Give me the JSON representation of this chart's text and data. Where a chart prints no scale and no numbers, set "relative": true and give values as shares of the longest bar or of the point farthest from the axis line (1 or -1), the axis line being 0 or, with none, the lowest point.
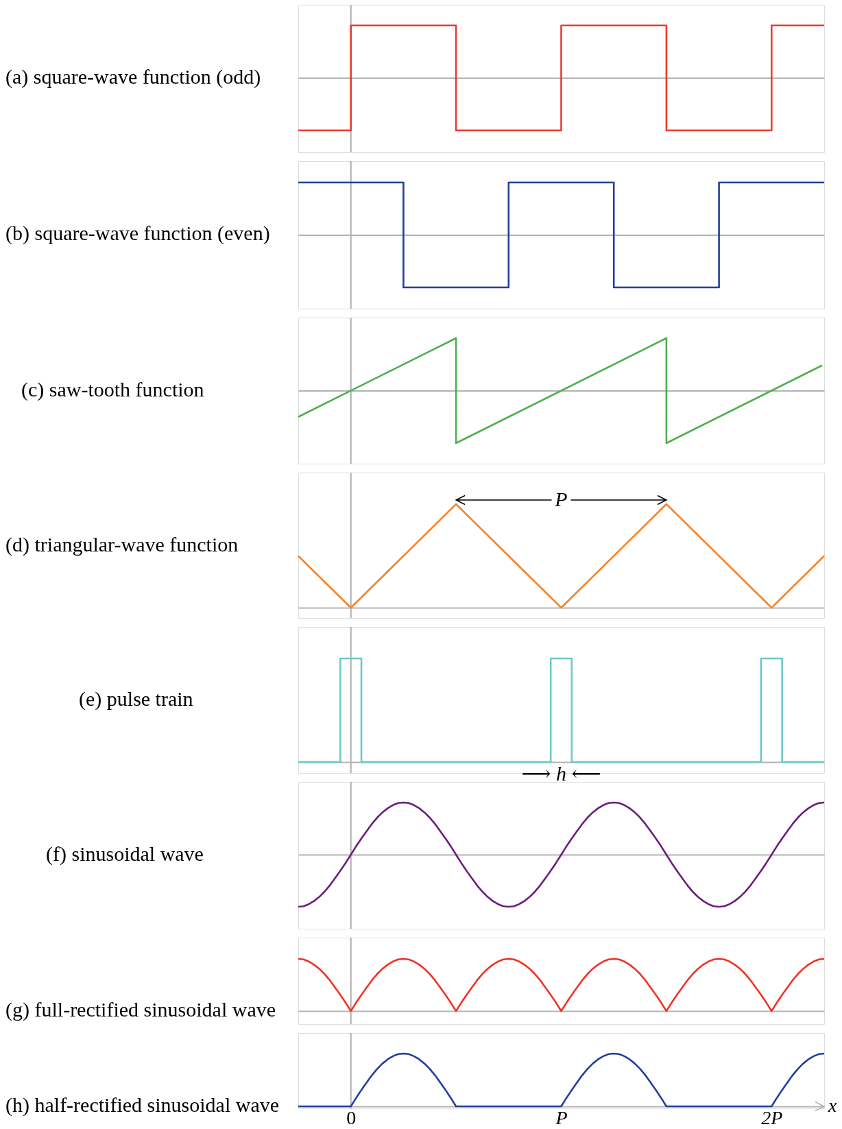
{
  "chart_data": [
    {
      "type": "step",
      "title": "(a) square-wave function (odd)",
      "relative": true,
      "xlim": [
        -0.25,
        2.25
      ],
      "tick_labels": false,
      "line_style": "solid",
      "color": "#ee3a2f",
      "x": [
        -0.25,
        0,
        0.5,
        1,
        1.5,
        2,
        2.25
      ],
      "values": [
        -1,
        1,
        -1,
        1,
        -1,
        1,
        1
      ],
      "ref_lines": [
        {
          "axis": "x",
          "value": 0,
          "color": "#b3b3b3"
        }
      ]
    },
    {
      "type": "step",
      "title": "(b) square-wave function (even)",
      "relative": true,
      "xlim": [
        -0.25,
        2.25
      ],
      "tick_labels": false,
      "line_style": "solid",
      "color": "#21409a",
      "x": [
        -0.25,
        0.25,
        0.75,
        1.25,
        1.75,
        2.25
      ],
      "values": [
        1,
        -1,
        1,
        -1,
        1,
        1
      ],
      "ref_lines": [
        {
          "axis": "x",
          "value": 0,
          "color": "#b3b3b3"
        }
      ]
    },
    {
      "type": "line",
      "title": "(c) saw-tooth function",
      "relative": true,
      "xlim": [
        -0.25,
        2.25
      ],
      "tick_labels": false,
      "line_style": "solid",
      "color": "#4db04f",
      "x": [
        -0.25,
        0.5,
        0.5,
        1.5,
        1.5,
        2.24
      ],
      "values": [
        -0.5,
        1,
        -1,
        1,
        -1,
        0.48
      ],
      "ref_lines": [
        {
          "axis": "x",
          "value": 0,
          "color": "#b3b3b3"
        }
      ]
    },
    {
      "type": "line",
      "title": "(d) triangular-wave function",
      "relative": true,
      "xlim": [
        -0.25,
        2.25
      ],
      "tick_labels": false,
      "line_style": "solid",
      "color": "#f5842c",
      "x": [
        -0.25,
        0,
        0.5,
        1,
        1.5,
        2,
        2.25
      ],
      "values": [
        0.5,
        0,
        1,
        0,
        1,
        0,
        0.5
      ],
      "ref_lines": [
        {
          "axis": "x",
          "value": 0,
          "color": "#b3b3b3"
        }
      ],
      "annotations": [
        "P"
      ]
    },
    {
      "type": "step",
      "title": "(e) pulse train",
      "relative": true,
      "xlim": [
        -0.25,
        2.25
      ],
      "tick_labels": false,
      "line_style": "solid",
      "color": "#6bc9c7",
      "x": [
        -0.25,
        -0.05,
        0.05,
        0.95,
        1.05,
        1.95,
        2.05,
        2.25
      ],
      "values": [
        0,
        1,
        0,
        1,
        0,
        1,
        0,
        0
      ],
      "ref_lines": [
        {
          "axis": "x",
          "value": 0,
          "color": "#b3b3b3"
        }
      ],
      "annotations": [
        "⟶ h ⟵"
      ]
    },
    {
      "type": "line",
      "title": "(f) sinusoidal wave",
      "relative": true,
      "xlim": [
        -0.25,
        2.25
      ],
      "tick_labels": false,
      "line_style": "solid",
      "color": "#6b1e7b",
      "x": [
        -0.25,
        -0.225,
        -0.2,
        -0.175,
        -0.15,
        -0.125,
        -0.1,
        -0.075,
        -0.05,
        -0.025,
        0,
        0.025,
        0.05,
        0.075,
        0.1,
        0.125,
        0.15,
        0.175,
        0.2,
        0.225,
        0.25,
        0.275,
        0.3,
        0.325,
        0.35,
        0.375,
        0.4,
        0.425,
        0.45,
        0.475,
        0.5,
        0.525,
        0.55,
        0.575,
        0.6,
        0.625,
        0.65,
        0.675,
        0.7,
        0.725,
        0.75,
        0.775,
        0.8,
        0.825,
        0.85,
        0.875,
        0.9,
        0.925,
        0.95,
        0.975,
        1,
        1.025,
        1.05,
        1.075,
        1.1,
        1.125,
        1.15,
        1.175,
        1.2,
        1.225,
        1.25,
        1.275,
        1.3,
        1.325,
        1.35,
        1.375,
        1.4,
        1.425,
        1.45,
        1.475,
        1.5,
        1.525,
        1.55,
        1.575,
        1.6,
        1.625,
        1.65,
        1.675,
        1.7,
        1.725,
        1.75,
        1.775,
        1.8,
        1.825,
        1.85,
        1.875,
        1.9,
        1.925,
        1.95,
        1.975,
        2,
        2.025,
        2.05,
        2.075,
        2.1,
        2.125,
        2.15,
        2.175,
        2.2,
        2.225,
        2.25
      ],
      "values": [
        -1,
        -0.99,
        -0.95,
        -0.89,
        -0.81,
        -0.71,
        -0.59,
        -0.45,
        -0.31,
        -0.16,
        0,
        0.16,
        0.31,
        0.45,
        0.59,
        0.71,
        0.81,
        0.89,
        0.95,
        0.99,
        1,
        0.99,
        0.95,
        0.89,
        0.81,
        0.71,
        0.59,
        0.45,
        0.31,
        0.16,
        0,
        -0.16,
        -0.31,
        -0.45,
        -0.59,
        -0.71,
        -0.81,
        -0.89,
        -0.95,
        -0.99,
        -1,
        -0.99,
        -0.95,
        -0.89,
        -0.81,
        -0.71,
        -0.59,
        -0.45,
        -0.31,
        -0.16,
        0,
        0.16,
        0.31,
        0.45,
        0.59,
        0.71,
        0.81,
        0.89,
        0.95,
        0.99,
        1,
        0.99,
        0.95,
        0.89,
        0.81,
        0.71,
        0.59,
        0.45,
        0.31,
        0.16,
        0,
        -0.16,
        -0.31,
        -0.45,
        -0.59,
        -0.71,
        -0.81,
        -0.89,
        -0.95,
        -0.99,
        -1,
        -0.99,
        -0.95,
        -0.89,
        -0.81,
        -0.71,
        -0.59,
        -0.45,
        -0.31,
        -0.16,
        0,
        0.16,
        0.31,
        0.45,
        0.59,
        0.71,
        0.81,
        0.89,
        0.95,
        0.99,
        1
      ],
      "ref_lines": [
        {
          "axis": "x",
          "value": 0,
          "color": "#b3b3b3"
        }
      ]
    },
    {
      "type": "line",
      "title": "(g) full-rectified sinusoidal wave",
      "relative": true,
      "xlim": [
        -0.25,
        2.25
      ],
      "tick_labels": false,
      "line_style": "solid",
      "color": "#ef3326",
      "x": [
        -0.25,
        -0.225,
        -0.2,
        -0.175,
        -0.15,
        -0.125,
        -0.1,
        -0.075,
        -0.05,
        -0.025,
        0,
        0.025,
        0.05,
        0.075,
        0.1,
        0.125,
        0.15,
        0.175,
        0.2,
        0.225,
        0.25,
        0.275,
        0.3,
        0.325,
        0.35,
        0.375,
        0.4,
        0.425,
        0.45,
        0.475,
        0.5,
        0.525,
        0.55,
        0.575,
        0.6,
        0.625,
        0.65,
        0.675,
        0.7,
        0.725,
        0.75,
        0.775,
        0.8,
        0.825,
        0.85,
        0.875,
        0.9,
        0.925,
        0.95,
        0.975,
        1,
        1.025,
        1.05,
        1.075,
        1.1,
        1.125,
        1.15,
        1.175,
        1.2,
        1.225,
        1.25,
        1.275,
        1.3,
        1.325,
        1.35,
        1.375,
        1.4,
        1.425,
        1.45,
        1.475,
        1.5,
        1.525,
        1.55,
        1.575,
        1.6,
        1.625,
        1.65,
        1.675,
        1.7,
        1.725,
        1.75,
        1.775,
        1.8,
        1.825,
        1.85,
        1.875,
        1.9,
        1.925,
        1.95,
        1.975,
        2,
        2.025,
        2.05,
        2.075,
        2.1,
        2.125,
        2.15,
        2.175,
        2.2,
        2.225,
        2.25
      ],
      "values": [
        1,
        0.99,
        0.95,
        0.89,
        0.81,
        0.71,
        0.59,
        0.45,
        0.31,
        0.16,
        0,
        0.16,
        0.31,
        0.45,
        0.59,
        0.71,
        0.81,
        0.89,
        0.95,
        0.99,
        1,
        0.99,
        0.95,
        0.89,
        0.81,
        0.71,
        0.59,
        0.45,
        0.31,
        0.16,
        0,
        0.16,
        0.31,
        0.45,
        0.59,
        0.71,
        0.81,
        0.89,
        0.95,
        0.99,
        1,
        0.99,
        0.95,
        0.89,
        0.81,
        0.71,
        0.59,
        0.45,
        0.31,
        0.16,
        0,
        0.16,
        0.31,
        0.45,
        0.59,
        0.71,
        0.81,
        0.89,
        0.95,
        0.99,
        1,
        0.99,
        0.95,
        0.89,
        0.81,
        0.71,
        0.59,
        0.45,
        0.31,
        0.16,
        0,
        0.16,
        0.31,
        0.45,
        0.59,
        0.71,
        0.81,
        0.89,
        0.95,
        0.99,
        1,
        0.99,
        0.95,
        0.89,
        0.81,
        0.71,
        0.59,
        0.45,
        0.31,
        0.16,
        0,
        0.16,
        0.31,
        0.45,
        0.59,
        0.71,
        0.81,
        0.89,
        0.95,
        0.99,
        1
      ],
      "ref_lines": [
        {
          "axis": "x",
          "value": 0,
          "color": "#b3b3b3"
        }
      ]
    },
    {
      "type": "line",
      "title": "(h) half-rectified sinusoidal wave",
      "relative": true,
      "xlim": [
        -0.25,
        2.25
      ],
      "xticks": [
        0,
        {
          "value": 1,
          "label": "P"
        },
        {
          "value": 2,
          "label": "2P"
        }
      ],
      "tick_labels": "x",
      "xlabel": "x",
      "line_style": "solid",
      "color": "#21409a",
      "x": [
        -0.25,
        -0.225,
        -0.2,
        -0.175,
        -0.15,
        -0.125,
        -0.1,
        -0.075,
        -0.05,
        -0.025,
        0,
        0.025,
        0.05,
        0.075,
        0.1,
        0.125,
        0.15,
        0.175,
        0.2,
        0.225,
        0.25,
        0.275,
        0.3,
        0.325,
        0.35,
        0.375,
        0.4,
        0.425,
        0.45,
        0.475,
        0.5,
        0.525,
        0.55,
        0.575,
        0.6,
        0.625,
        0.65,
        0.675,
        0.7,
        0.725,
        0.75,
        0.775,
        0.8,
        0.825,
        0.85,
        0.875,
        0.9,
        0.925,
        0.95,
        0.975,
        1,
        1.025,
        1.05,
        1.075,
        1.1,
        1.125,
        1.15,
        1.175,
        1.2,
        1.225,
        1.25,
        1.275,
        1.3,
        1.325,
        1.35,
        1.375,
        1.4,
        1.425,
        1.45,
        1.475,
        1.5,
        1.525,
        1.55,
        1.575,
        1.6,
        1.625,
        1.65,
        1.675,
        1.7,
        1.725,
        1.75,
        1.775,
        1.8,
        1.825,
        1.85,
        1.875,
        1.9,
        1.925,
        1.95,
        1.975,
        2,
        2.025,
        2.05,
        2.075,
        2.1,
        2.125,
        2.15,
        2.175,
        2.2,
        2.225,
        2.25
      ],
      "values": [
        0,
        0,
        0,
        0,
        0,
        0,
        0,
        0,
        0,
        0,
        0,
        0.16,
        0.31,
        0.45,
        0.59,
        0.71,
        0.81,
        0.89,
        0.95,
        0.99,
        1,
        0.99,
        0.95,
        0.89,
        0.81,
        0.71,
        0.59,
        0.45,
        0.31,
        0.16,
        0,
        0,
        0,
        0,
        0,
        0,
        0,
        0,
        0,
        0,
        0,
        0,
        0,
        0,
        0,
        0,
        0,
        0,
        0,
        0,
        0,
        0.16,
        0.31,
        0.45,
        0.59,
        0.71,
        0.81,
        0.89,
        0.95,
        0.99,
        1,
        0.99,
        0.95,
        0.89,
        0.81,
        0.71,
        0.59,
        0.45,
        0.31,
        0.16,
        0,
        0,
        0,
        0,
        0,
        0,
        0,
        0,
        0,
        0,
        0,
        0,
        0,
        0,
        0,
        0,
        0,
        0,
        0,
        0,
        0,
        0.16,
        0.31,
        0.45,
        0.59,
        0.71,
        0.81,
        0.89,
        0.95,
        0.99,
        1
      ],
      "ref_lines": [
        {
          "axis": "x",
          "value": 0,
          "color": "#b3b3b3"
        }
      ]
    }
  ]
}
